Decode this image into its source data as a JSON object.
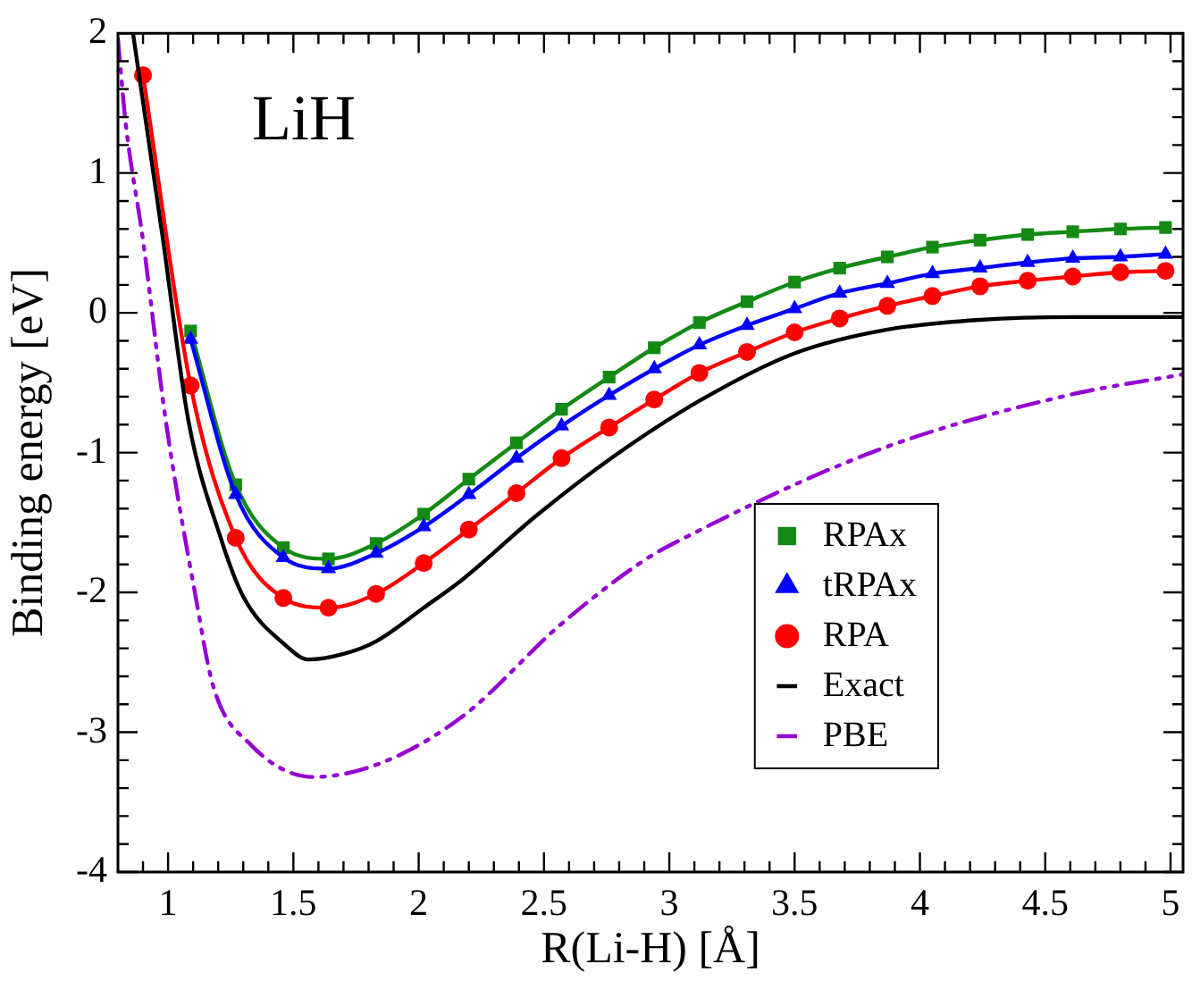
{
  "chart_data": {
    "type": "line",
    "title": "LiH",
    "xlabel": "R(Li-H) [Å]",
    "ylabel": "Binding energy [eV]",
    "xlim": [
      0.8,
      5.05
    ],
    "ylim": [
      -4,
      2
    ],
    "xticks": [
      {
        "value": 0.9,
        "label": null
      },
      1,
      {
        "value": 1.1,
        "label": null
      },
      {
        "value": 1.2,
        "label": null
      },
      {
        "value": 1.3,
        "label": null
      },
      {
        "value": 1.4,
        "label": null
      },
      1.5,
      {
        "value": 1.6,
        "label": null
      },
      {
        "value": 1.7,
        "label": null
      },
      {
        "value": 1.8,
        "label": null
      },
      {
        "value": 1.9,
        "label": null
      },
      2,
      {
        "value": 2.1,
        "label": null
      },
      {
        "value": 2.2,
        "label": null
      },
      {
        "value": 2.3,
        "label": null
      },
      {
        "value": 2.4,
        "label": null
      },
      2.5,
      {
        "value": 2.6,
        "label": null
      },
      {
        "value": 2.7,
        "label": null
      },
      {
        "value": 2.8,
        "label": null
      },
      {
        "value": 2.9,
        "label": null
      },
      3,
      {
        "value": 3.1,
        "label": null
      },
      {
        "value": 3.2,
        "label": null
      },
      {
        "value": 3.3,
        "label": null
      },
      {
        "value": 3.4,
        "label": null
      },
      3.5,
      {
        "value": 3.6,
        "label": null
      },
      {
        "value": 3.7,
        "label": null
      },
      {
        "value": 3.8,
        "label": null
      },
      {
        "value": 3.9,
        "label": null
      },
      4,
      {
        "value": 4.1,
        "label": null
      },
      {
        "value": 4.2,
        "label": null
      },
      {
        "value": 4.3,
        "label": null
      },
      {
        "value": 4.4,
        "label": null
      },
      4.5,
      {
        "value": 4.6,
        "label": null
      },
      {
        "value": 4.7,
        "label": null
      },
      {
        "value": 4.8,
        "label": null
      },
      {
        "value": 4.9,
        "label": null
      },
      5
    ],
    "yticks": [
      -4,
      {
        "value": -3.8,
        "label": null
      },
      {
        "value": -3.6,
        "label": null
      },
      {
        "value": -3.4,
        "label": null
      },
      {
        "value": -3.2,
        "label": null
      },
      -3,
      {
        "value": -2.8,
        "label": null
      },
      {
        "value": -2.6,
        "label": null
      },
      {
        "value": -2.4,
        "label": null
      },
      {
        "value": -2.2,
        "label": null
      },
      -2,
      {
        "value": -1.8,
        "label": null
      },
      {
        "value": -1.6,
        "label": null
      },
      {
        "value": -1.4,
        "label": null
      },
      {
        "value": -1.2,
        "label": null
      },
      -1,
      {
        "value": -0.8,
        "label": null
      },
      {
        "value": -0.6,
        "label": null
      },
      {
        "value": -0.4,
        "label": null
      },
      {
        "value": -0.2,
        "label": null
      },
      0,
      {
        "value": 0.2,
        "label": null
      },
      {
        "value": 0.4,
        "label": null
      },
      {
        "value": 0.6,
        "label": null
      },
      {
        "value": 0.8,
        "label": null
      },
      1,
      {
        "value": 1.2,
        "label": null
      },
      {
        "value": 1.4,
        "label": null
      },
      {
        "value": 1.6,
        "label": null
      },
      {
        "value": 1.8,
        "label": null
      },
      2
    ],
    "grid": false,
    "legend": "bottom right",
    "series": [
      {
        "name": "RPAx",
        "color": "#138a13",
        "marker": "square",
        "line_style": "solid",
        "x": [
          1.09,
          1.27,
          1.46,
          1.64,
          1.83,
          2.02,
          2.2,
          2.39,
          2.57,
          2.76,
          2.94,
          3.12,
          3.31,
          3.5,
          3.68,
          3.87,
          4.05,
          4.24,
          4.43,
          4.61,
          4.8,
          4.98
        ],
        "values": [
          -0.13,
          -1.23,
          -1.68,
          -1.76,
          -1.65,
          -1.44,
          -1.19,
          -0.93,
          -0.69,
          -0.46,
          -0.25,
          -0.07,
          0.08,
          0.22,
          0.32,
          0.4,
          0.47,
          0.52,
          0.56,
          0.58,
          0.6,
          0.61
        ]
      },
      {
        "name": "tRPAx",
        "color": "#0000ff",
        "marker": "triangle",
        "line_style": "solid",
        "x": [
          1.09,
          1.27,
          1.46,
          1.64,
          1.83,
          2.02,
          2.2,
          2.39,
          2.57,
          2.76,
          2.94,
          3.12,
          3.31,
          3.5,
          3.68,
          3.87,
          4.05,
          4.24,
          4.43,
          4.61,
          4.8,
          4.98
        ],
        "values": [
          -0.19,
          -1.3,
          -1.75,
          -1.83,
          -1.72,
          -1.53,
          -1.3,
          -1.04,
          -0.81,
          -0.59,
          -0.4,
          -0.23,
          -0.09,
          0.03,
          0.14,
          0.21,
          0.28,
          0.32,
          0.36,
          0.39,
          0.4,
          0.42
        ]
      },
      {
        "name": "RPA",
        "color": "#ff0000",
        "marker": "circle",
        "line_style": "solid",
        "x": [
          0.9,
          1.09,
          1.27,
          1.46,
          1.64,
          1.83,
          2.02,
          2.2,
          2.39,
          2.57,
          2.76,
          2.94,
          3.12,
          3.31,
          3.5,
          3.68,
          3.87,
          4.05,
          4.24,
          4.43,
          4.61,
          4.8,
          4.98
        ],
        "values": [
          1.7,
          -0.52,
          -1.61,
          -2.04,
          -2.11,
          -2.01,
          -1.79,
          -1.55,
          -1.29,
          -1.04,
          -0.82,
          -0.62,
          -0.43,
          -0.28,
          -0.14,
          -0.04,
          0.05,
          0.12,
          0.19,
          0.23,
          0.26,
          0.29,
          0.3
        ]
      },
      {
        "name": "Exact",
        "color": "#000000",
        "marker": "none",
        "line_style": "solid",
        "x": [
          0.86,
          0.98,
          1.08,
          1.21,
          1.3,
          1.47,
          1.56,
          1.7,
          1.83,
          2.02,
          2.18,
          2.47,
          2.76,
          3.12,
          3.5,
          3.87,
          4.24,
          4.61,
          5.05
        ],
        "values": [
          2,
          0.52,
          -0.76,
          -1.61,
          -2.03,
          -2.38,
          -2.48,
          -2.44,
          -2.35,
          -2.11,
          -1.9,
          -1.45,
          -1.05,
          -0.63,
          -0.29,
          -0.12,
          -0.05,
          -0.03,
          -0.03
        ]
      },
      {
        "name": "PBE",
        "color": "#9400d3",
        "marker": "none",
        "line_style": "dashed",
        "x": [
          0.8,
          0.83,
          0.9,
          0.99,
          1.11,
          1.18,
          1.33,
          1.58,
          1.85,
          2.18,
          2.56,
          2.9,
          3.06,
          3.85,
          4.59,
          5.05
        ],
        "values": [
          1.96,
          1.37,
          0.52,
          -0.76,
          -2.03,
          -2.67,
          -3.09,
          -3.32,
          -3.22,
          -2.88,
          -2.24,
          -1.77,
          -1.61,
          -0.97,
          -0.59,
          -0.44
        ]
      }
    ]
  }
}
